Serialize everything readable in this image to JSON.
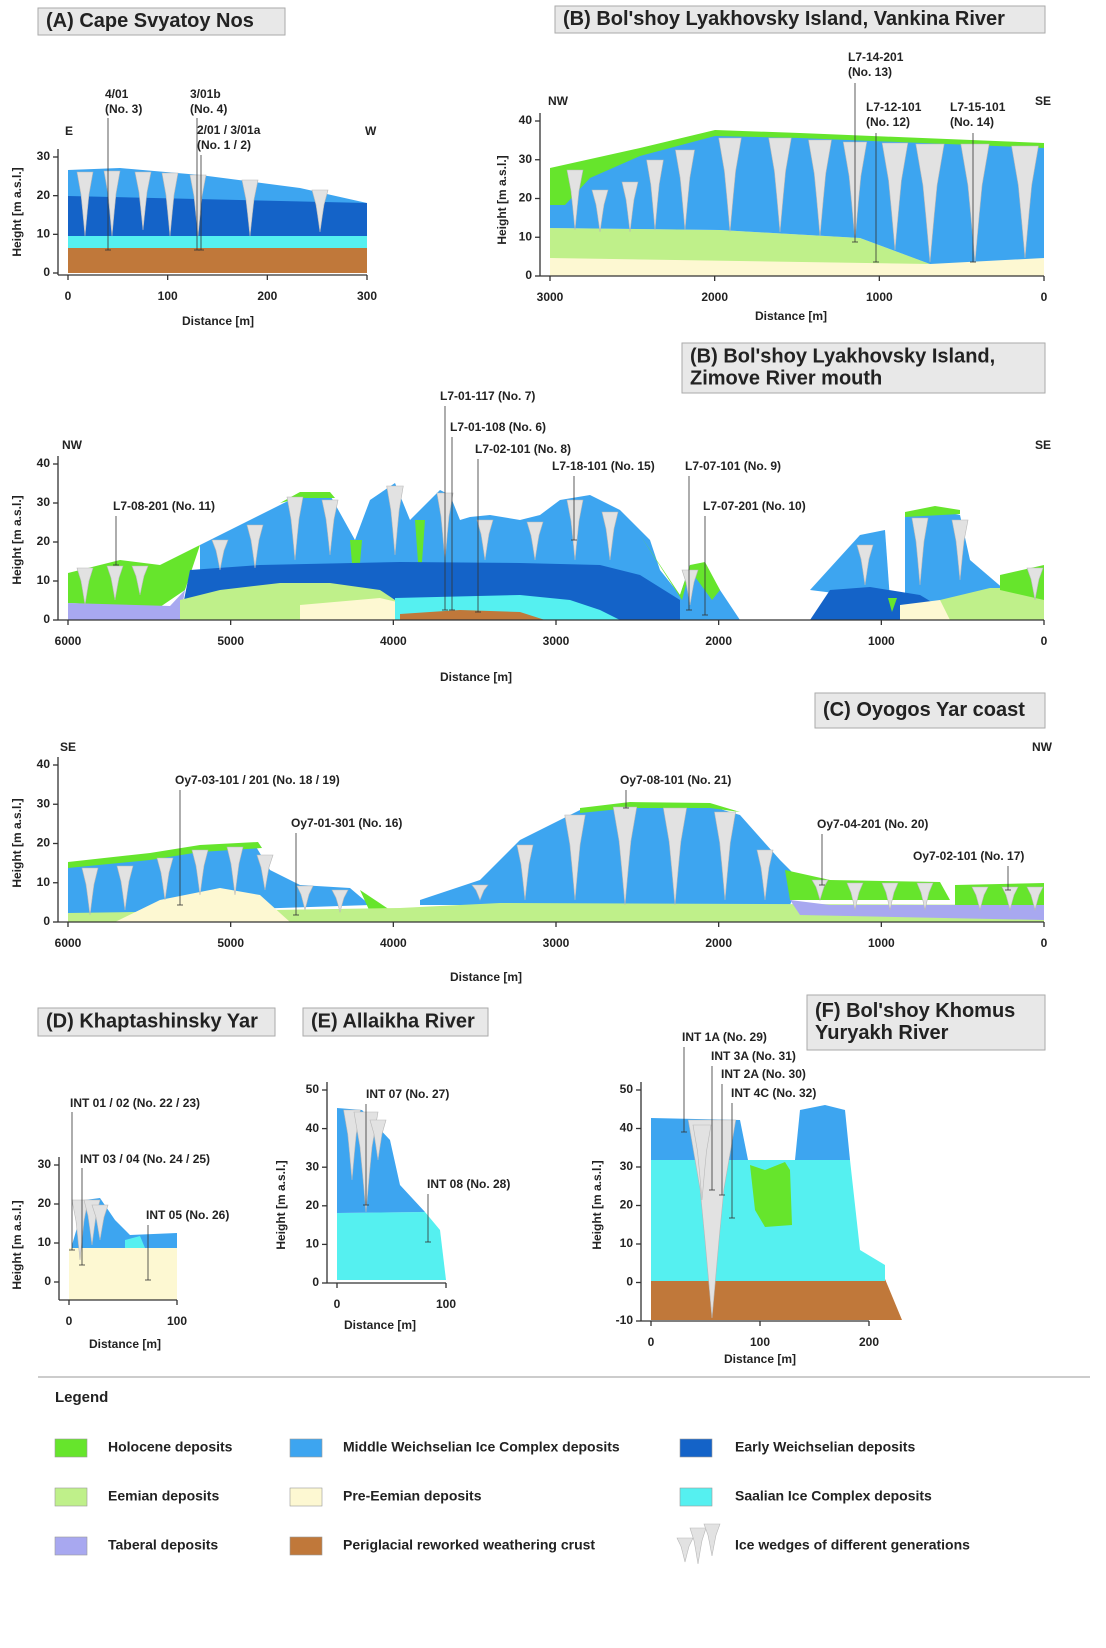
{
  "panels": [
    {
      "title_lines": [
        "(A) Cape Svyatoy Nos"
      ],
      "left_label": "E",
      "right_label": "W",
      "y_label": "Height [m a.s.l.]",
      "x_label": "Distance [m]",
      "xticks": [
        "0",
        "100",
        "200",
        "300"
      ],
      "yticks": [
        "0",
        "10",
        "20",
        "30"
      ],
      "samples": [
        {
          "lines": [
            "4/01",
            "(No. 3)"
          ]
        },
        {
          "lines": [
            "3/01b",
            "(No. 4)"
          ]
        },
        {
          "lines": [
            "2/01 / 3/01a",
            "(No. 1 / 2)"
          ]
        }
      ]
    },
    {
      "title_lines": [
        "(B) Bol'shoy Lyakhovsky Island, Vankina River"
      ],
      "left_label": "NW",
      "right_label": "SE",
      "y_label": "Height [m a.s.l.]",
      "x_label": "Distance [m]",
      "xticks": [
        "3000",
        "2000",
        "1000",
        "0"
      ],
      "yticks": [
        "0",
        "10",
        "20",
        "30",
        "40"
      ],
      "samples": [
        {
          "lines": [
            "L7-14-201",
            "(No. 13)"
          ]
        },
        {
          "lines": [
            "L7-12-101",
            "(No. 12)"
          ]
        },
        {
          "lines": [
            "L7-15-101",
            "(No. 14)"
          ]
        }
      ]
    },
    {
      "title_lines": [
        "(B) Bol'shoy Lyakhovsky Island,",
        "Zimove River mouth"
      ],
      "left_label": "NW",
      "right_label": "SE",
      "y_label": "Height [m a.s.l.]",
      "x_label": "Distance [m]",
      "xticks": [
        "6000",
        "5000",
        "4000",
        "3000",
        "2000",
        "1000",
        "0"
      ],
      "yticks": [
        "0",
        "10",
        "20",
        "30",
        "40"
      ],
      "samples": [
        {
          "lines": [
            "L7-01-117 (No. 7)"
          ]
        },
        {
          "lines": [
            "L7-01-108 (No. 6)"
          ]
        },
        {
          "lines": [
            "L7-02-101 (No. 8)"
          ]
        },
        {
          "lines": [
            "L7-18-101 (No. 15)"
          ]
        },
        {
          "lines": [
            "L7-07-101 (No. 9)"
          ]
        },
        {
          "lines": [
            "L7-07-201 (No. 10)"
          ]
        },
        {
          "lines": [
            "L7-08-201 (No. 11)"
          ]
        }
      ]
    },
    {
      "title_lines": [
        "(C) Oyogos Yar coast"
      ],
      "left_label": "SE",
      "right_label": "NW",
      "y_label": "Height [m a.s.l.]",
      "x_label": "Distance [m]",
      "xticks": [
        "6000",
        "5000",
        "4000",
        "3000",
        "2000",
        "1000",
        "0"
      ],
      "yticks": [
        "0",
        "10",
        "20",
        "30",
        "40"
      ],
      "samples": [
        {
          "lines": [
            "Oy7-03-101 / 201 (No. 18 / 19)"
          ]
        },
        {
          "lines": [
            "Oy7-01-301 (No. 16)"
          ]
        },
        {
          "lines": [
            "Oy7-08-101 (No. 21)"
          ]
        },
        {
          "lines": [
            "Oy7-04-201 (No. 20)"
          ]
        },
        {
          "lines": [
            "Oy7-02-101 (No. 17)"
          ]
        }
      ]
    },
    {
      "title_lines": [
        "(D) Khaptashinsky Yar"
      ],
      "y_label": "Height [m a.s.l.]",
      "x_label": "Distance [m]",
      "xticks": [
        "0",
        "100"
      ],
      "yticks": [
        "0",
        "10",
        "20",
        "30"
      ],
      "samples": [
        {
          "lines": [
            "INT 01 / 02 (No. 22 / 23)"
          ]
        },
        {
          "lines": [
            "INT 03 / 04 (No. 24 / 25)"
          ]
        },
        {
          "lines": [
            "INT 05 (No. 26)"
          ]
        }
      ]
    },
    {
      "title_lines": [
        "(E) Allaikha River"
      ],
      "y_label": "Height [m a.s.l.]",
      "x_label": "Distance [m]",
      "xticks": [
        "0",
        "100"
      ],
      "yticks": [
        "0",
        "10",
        "20",
        "30",
        "40",
        "50"
      ],
      "samples": [
        {
          "lines": [
            "INT 07 (No. 27)"
          ]
        },
        {
          "lines": [
            "INT 08 (No. 28)"
          ]
        }
      ]
    },
    {
      "title_lines": [
        "(F) Bol'shoy Khomus",
        "Yuryakh River"
      ],
      "y_label": "Height [m a.s.l.]",
      "x_label": "Distance [m]",
      "xticks": [
        "0",
        "100",
        "200"
      ],
      "yticks": [
        "-10",
        "0",
        "10",
        "20",
        "30",
        "40",
        "50"
      ],
      "samples": [
        {
          "lines": [
            "INT 1A (No. 29)"
          ]
        },
        {
          "lines": [
            "INT 3A (No. 31)"
          ]
        },
        {
          "lines": [
            "INT 2A (No. 30)"
          ]
        },
        {
          "lines": [
            "INT 4C (No. 32)"
          ]
        }
      ]
    }
  ],
  "legend": {
    "title": "Legend",
    "items": [
      {
        "label": "Holocene deposits",
        "color": "#66e52c"
      },
      {
        "label": "Middle Weichselian Ice Complex deposits",
        "color": "#3da5f0"
      },
      {
        "label": "Early Weichselian deposits",
        "color": "#1463c8"
      },
      {
        "label": "Eemian deposits",
        "color": "#bff08a"
      },
      {
        "label": "Pre-Eemian deposits",
        "color": "#fdf8d2"
      },
      {
        "label": "Saalian Ice Complex deposits",
        "color": "#55f0f0"
      },
      {
        "label": "Taberal deposits",
        "color": "#a8a8f0"
      },
      {
        "label": "Periglacial reworked weathering crust",
        "color": "#c0783a"
      },
      {
        "label": "Ice wedges of different generations",
        "color": "#e2e2e2"
      }
    ]
  }
}
